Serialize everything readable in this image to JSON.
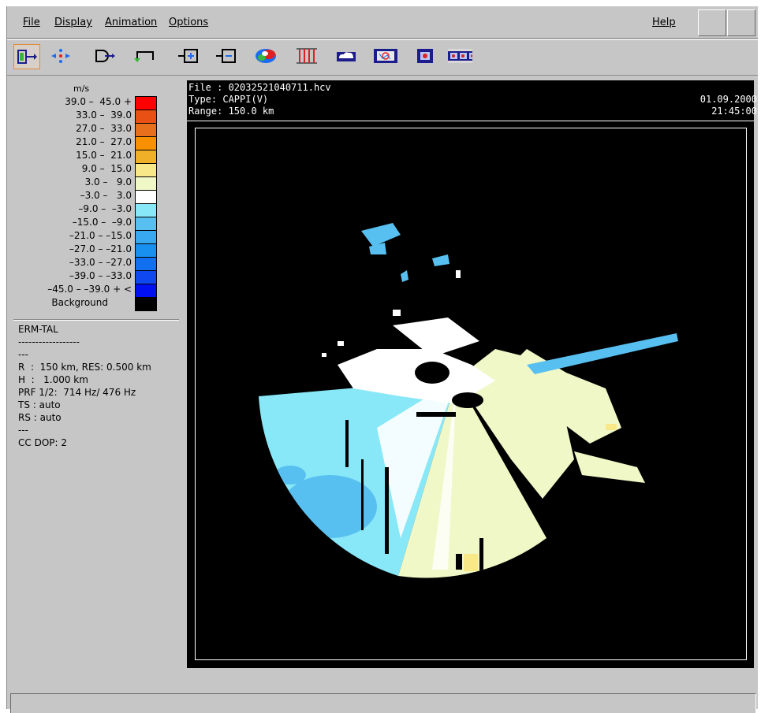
{
  "menubar": {
    "file": "File",
    "display": "Display",
    "animation": "Animation",
    "options": "Options",
    "help": "Help"
  },
  "toolbar": {
    "icons": [
      "export-icon",
      "zoom-center-icon",
      "save-icon",
      "undo-icon",
      "zoom-in-icon",
      "zoom-out-icon",
      "palette-icon",
      "range-markers-icon",
      "cloud-icon",
      "map-overlay-icon",
      "mini-map-icon",
      "film-strip-icon"
    ]
  },
  "legend": {
    "unit": "m/s",
    "entries": [
      {
        "label": "39.0 –  45.0 +",
        "color": "#ff0000"
      },
      {
        "label": "33.0 –  39.0",
        "color": "#e85014"
      },
      {
        "label": "27.0 –  33.0",
        "color": "#e8701c"
      },
      {
        "label": "21.0 –  27.0",
        "color": "#f89000"
      },
      {
        "label": "15.0 –  21.0",
        "color": "#f0b028"
      },
      {
        "label": "9.0 –  15.0",
        "color": "#f8e888"
      },
      {
        "label": "3.0 –   9.0",
        "color": "#f0f8c8"
      },
      {
        "label": "–3.0 –   3.0",
        "color": "#ffffff"
      },
      {
        "label": "–9.0 –  –3.0",
        "color": "#88e8f8"
      },
      {
        "label": "–15.0 –  –9.0",
        "color": "#58c0f0"
      },
      {
        "label": "–21.0 – –15.0",
        "color": "#38a8f0"
      },
      {
        "label": "–27.0 – –21.0",
        "color": "#1890f0"
      },
      {
        "label": "–33.0 – –27.0",
        "color": "#1070f0"
      },
      {
        "label": "–39.0 – –33.0",
        "color": "#1048f0"
      },
      {
        "label": "–45.0 – –39.0 + <",
        "color": "#0010f0"
      },
      {
        "label": "Background",
        "color": "#000000"
      }
    ]
  },
  "info": {
    "station": "ERM-TAL",
    "dashes": "------------------",
    "dashes_short": "---",
    "range": "R  :  150 km, RES: 0.500 km",
    "height": "H  :   1.000 km",
    "prf": "PRF 1/2:  714 Hz/ 476 Hz",
    "ts": "TS : auto",
    "rs": "RS : auto",
    "dashes_short2": "---",
    "ccdop": "CC DOP: 2"
  },
  "radar": {
    "file_line": "File : 02032521040711.hcv",
    "type_line": "Type: CAPPI(V)",
    "range_line": "Range: 150.0 km",
    "date": "01.09.2000",
    "time": "21:45:00"
  }
}
